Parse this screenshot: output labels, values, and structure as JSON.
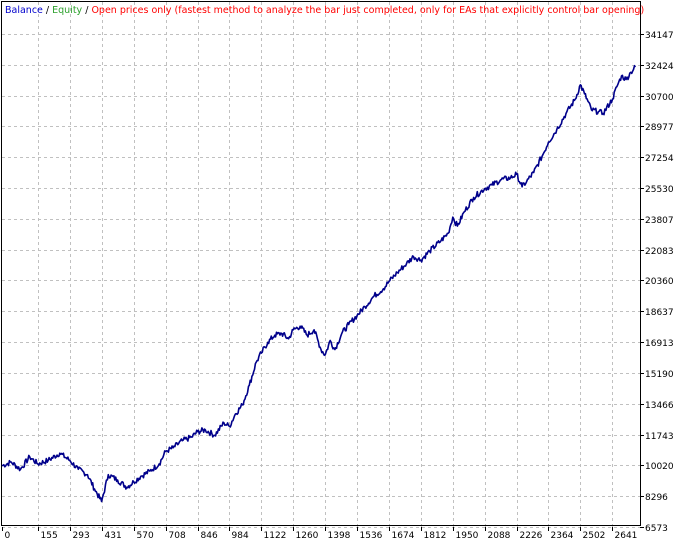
{
  "legend": {
    "balance_label": "Balance",
    "sep1": " / ",
    "equity_label": "Equity",
    "sep2": " / ",
    "mode_text": "Open prices only (fastest method to analyze the bar just completed, only for EAs that explicitly control bar opening)"
  },
  "colors": {
    "balance": "#00008b",
    "equity": "#2ca02c",
    "mode_text": "#ff0000",
    "grid": "#c0c0c0",
    "frame": "#000000",
    "background": "#ffffff"
  },
  "chart_data": {
    "type": "line",
    "xlabel": "",
    "ylabel": "",
    "xlim": [
      0,
      2760
    ],
    "ylim": [
      6573,
      35150
    ],
    "x_ticks": [
      0,
      155,
      293,
      431,
      570,
      708,
      846,
      984,
      1122,
      1260,
      1398,
      1536,
      1674,
      1812,
      1950,
      2088,
      2226,
      2364,
      2502,
      2641
    ],
    "y_ticks": [
      34147,
      32424,
      30700,
      28977,
      27254,
      25530,
      23807,
      22083,
      20360,
      18637,
      16913,
      15190,
      13466,
      11743,
      10020,
      8296,
      6573
    ],
    "grid": true,
    "legend_position": "top-left",
    "series": [
      {
        "name": "Balance",
        "x": [
          0,
          40,
          80,
          120,
          155,
          200,
          250,
          293,
          330,
          370,
          400,
          431,
          460,
          500,
          540,
          570,
          600,
          640,
          680,
          708,
          740,
          780,
          820,
          846,
          880,
          920,
          960,
          984,
          1010,
          1040,
          1070,
          1100,
          1122,
          1150,
          1180,
          1210,
          1240,
          1260,
          1290,
          1320,
          1350,
          1380,
          1398,
          1420,
          1440,
          1470,
          1500,
          1536,
          1570,
          1610,
          1650,
          1674,
          1710,
          1750,
          1780,
          1812,
          1850,
          1900,
          1930,
          1950,
          1970,
          2000,
          2040,
          2088,
          2120,
          2160,
          2200,
          2226,
          2250,
          2270,
          2300,
          2340,
          2364,
          2400,
          2440,
          2480,
          2502,
          2520,
          2550,
          2580,
          2600,
          2641,
          2660,
          2680,
          2700,
          2720,
          2740
        ],
        "y": [
          10000,
          10200,
          9800,
          10500,
          10100,
          10300,
          10700,
          10300,
          9800,
          9500,
          8700,
          8000,
          9500,
          9200,
          8800,
          9100,
          9400,
          9700,
          10100,
          10800,
          11000,
          11400,
          11600,
          11900,
          12000,
          11700,
          12400,
          12200,
          12900,
          13400,
          14500,
          15800,
          16300,
          16900,
          17300,
          17400,
          17100,
          17600,
          17800,
          17300,
          17600,
          16500,
          16200,
          17000,
          16500,
          17400,
          17900,
          18400,
          18900,
          19500,
          19900,
          20300,
          20800,
          21300,
          21700,
          21500,
          22000,
          22600,
          23000,
          23900,
          23400,
          24200,
          25000,
          25500,
          25700,
          26000,
          26100,
          26300,
          25600,
          25900,
          26400,
          27400,
          28100,
          28800,
          29700,
          30500,
          31300,
          30800,
          29900,
          29800,
          29700,
          30500,
          31200,
          31800,
          31600,
          32000,
          32300
        ]
      }
    ]
  }
}
